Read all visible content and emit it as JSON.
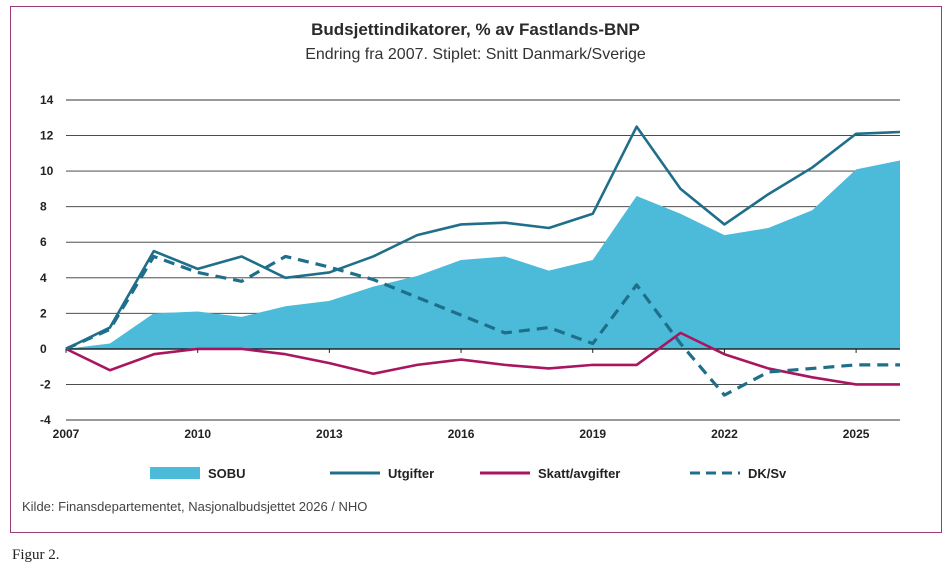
{
  "title": "Budsjettindikatorer, % av Fastlands-BNP",
  "subtitle": "Endring fra 2007. Stiplet: Snitt Danmark/Sverige",
  "source": "Kilde: Finansdepartementet, Nasjonalbudsjettet 2026 / NHO",
  "caption": "Figur 2.",
  "chart_data": {
    "type": "line",
    "x": [
      2007,
      2008,
      2009,
      2010,
      2011,
      2012,
      2013,
      2014,
      2015,
      2016,
      2017,
      2018,
      2019,
      2020,
      2021,
      2022,
      2023,
      2024,
      2025,
      2026
    ],
    "xticks": [
      "2007",
      "2010",
      "2013",
      "2016",
      "2019",
      "2022",
      "2025"
    ],
    "xtick_values": [
      2007,
      2010,
      2013,
      2016,
      2019,
      2022,
      2025
    ],
    "yticks": [
      "14",
      "12",
      "10",
      "8",
      "6",
      "4",
      "2",
      "0",
      "-2",
      "-4"
    ],
    "ytick_values": [
      14,
      12,
      10,
      8,
      6,
      4,
      2,
      0,
      -2,
      -4
    ],
    "ylim": [
      -4,
      14
    ],
    "xlim": [
      2007,
      2026
    ],
    "grid": true,
    "legend_position": "bottom",
    "series": [
      {
        "name": "SOBU",
        "style": "area",
        "color": "#4bbbd9",
        "values": [
          0,
          0.3,
          2.0,
          2.1,
          1.8,
          2.4,
          2.7,
          3.5,
          4.1,
          5.0,
          5.2,
          4.4,
          5.0,
          8.6,
          7.6,
          6.4,
          6.8,
          7.8,
          10.1,
          10.6
        ]
      },
      {
        "name": "Utgifter",
        "style": "line",
        "color": "#1f6f8b",
        "values": [
          0,
          1.2,
          5.5,
          4.5,
          5.2,
          4.0,
          4.3,
          5.2,
          6.4,
          7.0,
          7.1,
          6.8,
          7.6,
          12.5,
          9.0,
          7.0,
          8.7,
          10.2,
          12.1,
          12.2
        ]
      },
      {
        "name": "Skatt/avgifter",
        "style": "line",
        "color": "#a8165f",
        "values": [
          0,
          -1.2,
          -0.3,
          0,
          0,
          -0.3,
          -0.8,
          -1.4,
          -0.9,
          -0.6,
          -0.9,
          -1.1,
          -0.9,
          -0.9,
          0.9,
          -0.3,
          -1.1,
          -1.6,
          -2.0,
          -2.0
        ]
      },
      {
        "name": "DK/Sv",
        "style": "dashed",
        "color": "#1f6f8b",
        "values": [
          0,
          1.1,
          5.2,
          4.3,
          3.8,
          5.2,
          4.6,
          3.9,
          2.9,
          1.9,
          0.9,
          1.2,
          0.3,
          3.6,
          0.3,
          -2.6,
          -1.3,
          -1.1,
          -0.9,
          -0.9
        ]
      }
    ]
  }
}
